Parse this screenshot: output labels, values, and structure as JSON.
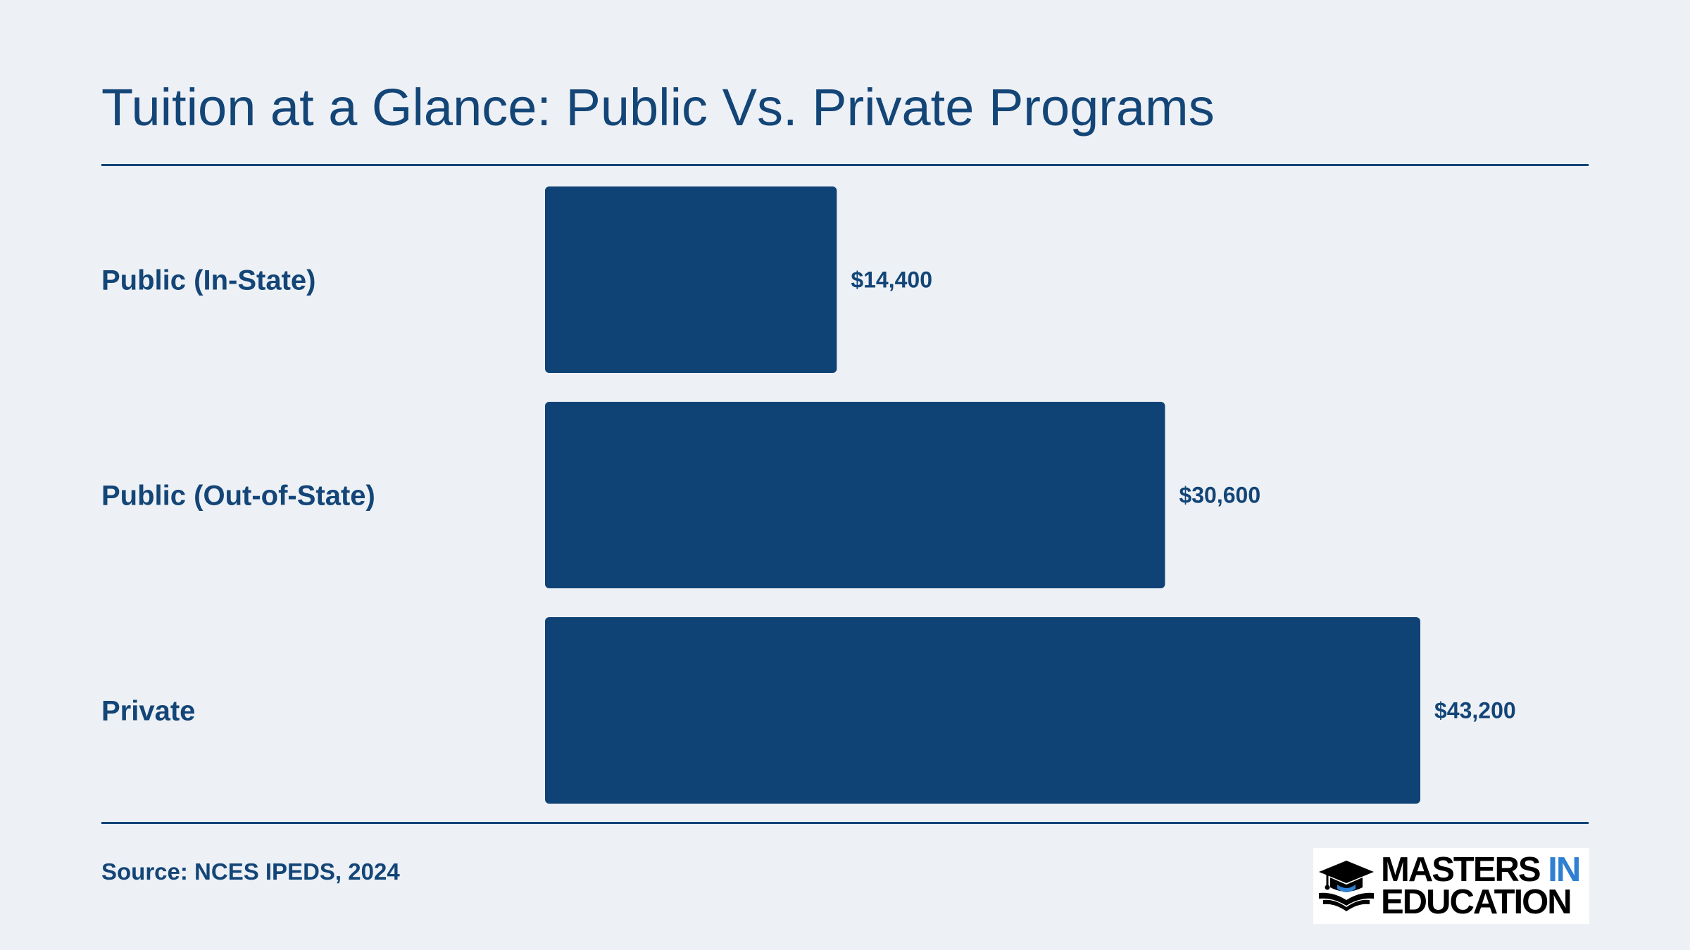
{
  "header": {
    "title": "Tuition at a Glance: Public Vs. Private Programs"
  },
  "footer": {
    "source": "Source: NCES IPEDS, 2024"
  },
  "logo": {
    "line1_main": "MASTERS",
    "line1_accent": "IN",
    "line2": "EDUCATION",
    "icon": "graduation-cap-book-icon",
    "accent_color": "#2f7fd2"
  },
  "colors": {
    "background": "#edf0f5",
    "bar": "#104375",
    "text": "#134577"
  },
  "chart_data": {
    "type": "bar",
    "orientation": "horizontal",
    "title": "Tuition at a Glance: Public Vs. Private Programs",
    "categories": [
      "Public (In-State)",
      "Public (Out-of-State)",
      "Private"
    ],
    "values": [
      14400,
      30600,
      43200
    ],
    "value_labels": [
      "$14,400",
      "$30,600",
      "$43,200"
    ],
    "xlabel": "",
    "ylabel": "",
    "xlim": [
      0,
      43200
    ],
    "grid": false,
    "legend": "none"
  }
}
